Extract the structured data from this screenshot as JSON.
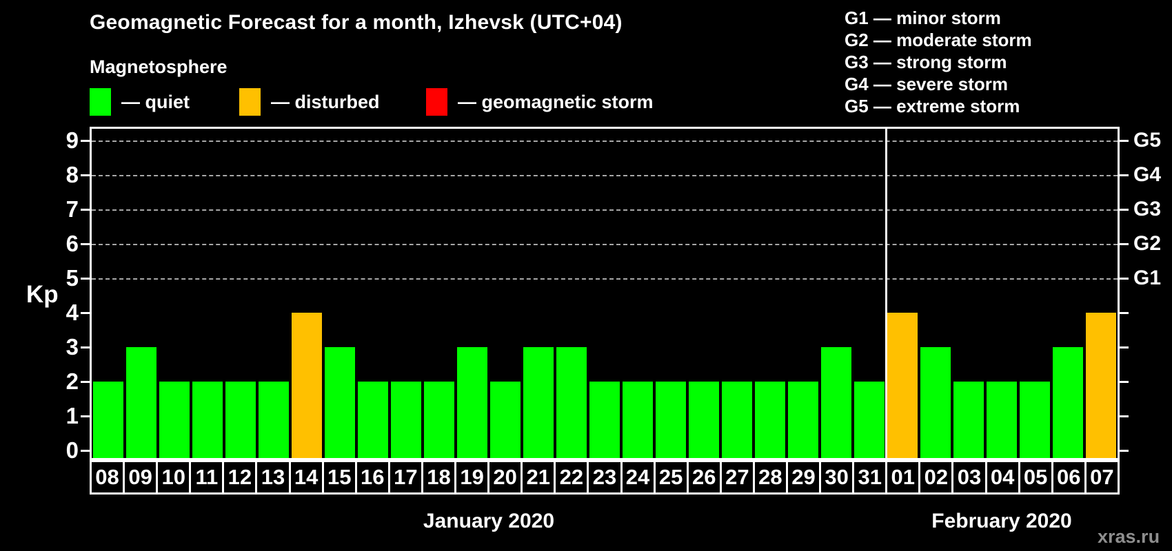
{
  "title": "Geomagnetic Forecast for a month, Izhevsk (UTC+04)",
  "subtitle": "Magnetosphere",
  "legend": {
    "items": [
      {
        "name": "quiet",
        "label": "— quiet",
        "color": "#00ff00"
      },
      {
        "name": "disturbed",
        "label": "— disturbed",
        "color": "#ffc000"
      },
      {
        "name": "geomagnetic-storm",
        "label": "— geomagnetic storm",
        "color": "#ff0000"
      }
    ]
  },
  "g_scale_legend": [
    "G1 — minor storm",
    "G2 — moderate storm",
    "G3 — strong storm",
    "G4 — severe storm",
    "G5 — extreme storm"
  ],
  "watermark": "xras.ru",
  "chart_data": {
    "type": "bar",
    "title": "Geomagnetic Forecast for a month, Izhevsk (UTC+04)",
    "ylabel": "Kp",
    "ylim": [
      0,
      9
    ],
    "y_ticks": [
      0,
      1,
      2,
      3,
      4,
      5,
      6,
      7,
      8,
      9
    ],
    "dashed_gridlines_at_kp": [
      5,
      6,
      7,
      8,
      9
    ],
    "right_axis_labels": [
      {
        "text": "G1",
        "kp": 5
      },
      {
        "text": "G2",
        "kp": 6
      },
      {
        "text": "G3",
        "kp": 7
      },
      {
        "text": "G4",
        "kp": 8
      },
      {
        "text": "G5",
        "kp": 9
      }
    ],
    "color_map": {
      "quiet": "#00ff00",
      "disturbed": "#ffc000",
      "storm": "#ff0000"
    },
    "grid_on": true,
    "legend_position": "top-left",
    "months": [
      {
        "label": "January 2020",
        "days": [
          {
            "day": "08",
            "kp": 2,
            "state": "quiet"
          },
          {
            "day": "09",
            "kp": 3,
            "state": "quiet"
          },
          {
            "day": "10",
            "kp": 2,
            "state": "quiet"
          },
          {
            "day": "11",
            "kp": 2,
            "state": "quiet"
          },
          {
            "day": "12",
            "kp": 2,
            "state": "quiet"
          },
          {
            "day": "13",
            "kp": 2,
            "state": "quiet"
          },
          {
            "day": "14",
            "kp": 4,
            "state": "disturbed"
          },
          {
            "day": "15",
            "kp": 3,
            "state": "quiet"
          },
          {
            "day": "16",
            "kp": 2,
            "state": "quiet"
          },
          {
            "day": "17",
            "kp": 2,
            "state": "quiet"
          },
          {
            "day": "18",
            "kp": 2,
            "state": "quiet"
          },
          {
            "day": "19",
            "kp": 3,
            "state": "quiet"
          },
          {
            "day": "20",
            "kp": 2,
            "state": "quiet"
          },
          {
            "day": "21",
            "kp": 3,
            "state": "quiet"
          },
          {
            "day": "22",
            "kp": 3,
            "state": "quiet"
          },
          {
            "day": "23",
            "kp": 2,
            "state": "quiet"
          },
          {
            "day": "24",
            "kp": 2,
            "state": "quiet"
          },
          {
            "day": "25",
            "kp": 2,
            "state": "quiet"
          },
          {
            "day": "26",
            "kp": 2,
            "state": "quiet"
          },
          {
            "day": "27",
            "kp": 2,
            "state": "quiet"
          },
          {
            "day": "28",
            "kp": 2,
            "state": "quiet"
          },
          {
            "day": "29",
            "kp": 2,
            "state": "quiet"
          },
          {
            "day": "30",
            "kp": 3,
            "state": "quiet"
          },
          {
            "day": "31",
            "kp": 2,
            "state": "quiet"
          }
        ]
      },
      {
        "label": "February 2020",
        "days": [
          {
            "day": "01",
            "kp": 4,
            "state": "disturbed"
          },
          {
            "day": "02",
            "kp": 3,
            "state": "quiet"
          },
          {
            "day": "03",
            "kp": 2,
            "state": "quiet"
          },
          {
            "day": "04",
            "kp": 2,
            "state": "quiet"
          },
          {
            "day": "05",
            "kp": 2,
            "state": "quiet"
          },
          {
            "day": "06",
            "kp": 3,
            "state": "quiet"
          },
          {
            "day": "07",
            "kp": 4,
            "state": "disturbed"
          }
        ]
      }
    ]
  }
}
